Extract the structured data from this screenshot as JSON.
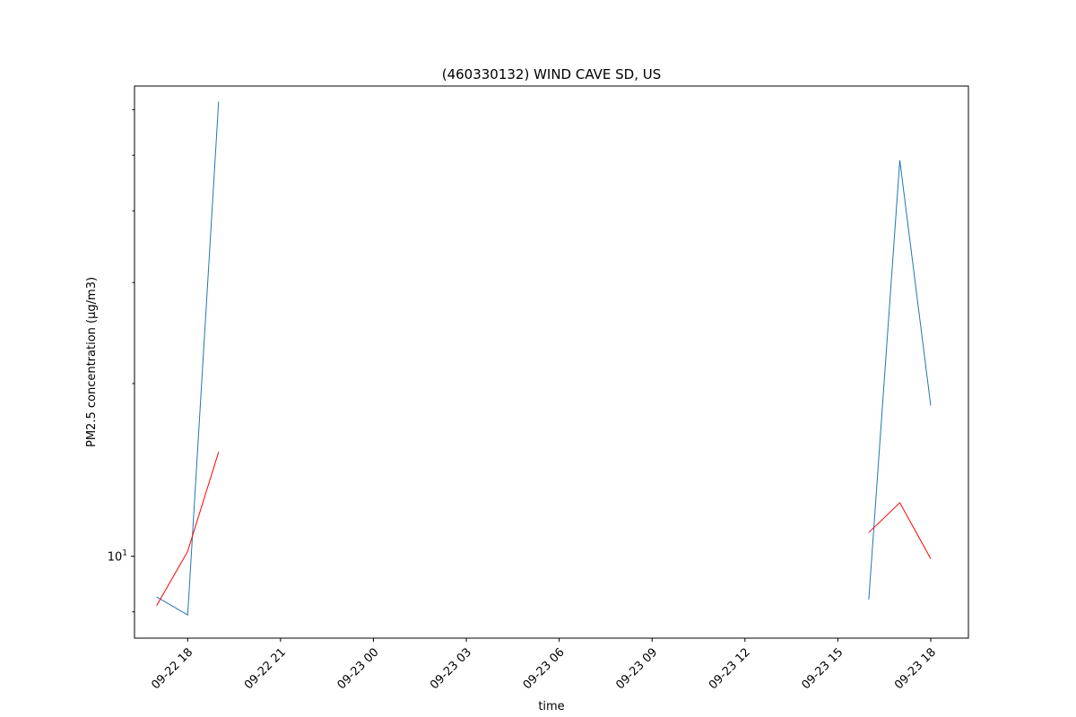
{
  "chart_data": {
    "type": "line",
    "title": "(460330132) WIND CAVE SD, US",
    "xlabel": "time",
    "ylabel": "PM2.5 concentration (µg/m3)",
    "yscale": "log",
    "grid": false,
    "legend": "none",
    "xlim": [
      "2022-09-22 16:17",
      "2022-09-23 19:13"
    ],
    "ylim": [
      7.2,
      66
    ],
    "x_ticks": [
      {
        "t": "2022-09-22 18:00",
        "label": "09-22 18"
      },
      {
        "t": "2022-09-22 21:00",
        "label": "09-22 21"
      },
      {
        "t": "2022-09-23 00:00",
        "label": "09-23 00"
      },
      {
        "t": "2022-09-23 03:00",
        "label": "09-23 03"
      },
      {
        "t": "2022-09-23 06:00",
        "label": "09-23 06"
      },
      {
        "t": "2022-09-23 09:00",
        "label": "09-23 09"
      },
      {
        "t": "2022-09-23 12:00",
        "label": "09-23 12"
      },
      {
        "t": "2022-09-23 15:00",
        "label": "09-23 15"
      },
      {
        "t": "2022-09-23 18:00",
        "label": "09-23 18"
      }
    ],
    "y_major_ticks": [
      {
        "v": 10,
        "base": "10",
        "exp": "1"
      }
    ],
    "y_minor_ticks": [
      8,
      20,
      30,
      40,
      50,
      60
    ],
    "series": [
      {
        "color": "#1f77b4",
        "segments": [
          [
            {
              "t": "2022-09-22 17:00",
              "v": 8.5
            },
            {
              "t": "2022-09-22 18:00",
              "v": 7.9
            },
            {
              "t": "2022-09-22 19:00",
              "v": 62
            }
          ],
          [
            {
              "t": "2022-09-23 16:00",
              "v": 8.4
            },
            {
              "t": "2022-09-23 17:00",
              "v": 49
            },
            {
              "t": "2022-09-23 18:00",
              "v": 18.3
            }
          ]
        ]
      },
      {
        "color": "#ff0000",
        "segments": [
          [
            {
              "t": "2022-09-22 17:00",
              "v": 8.2
            },
            {
              "t": "2022-09-22 18:00",
              "v": 10.2
            },
            {
              "t": "2022-09-22 19:00",
              "v": 15.2
            }
          ],
          [
            {
              "t": "2022-09-23 16:00",
              "v": 11.0
            },
            {
              "t": "2022-09-23 17:00",
              "v": 12.4
            },
            {
              "t": "2022-09-23 18:00",
              "v": 9.9
            }
          ]
        ]
      }
    ]
  }
}
